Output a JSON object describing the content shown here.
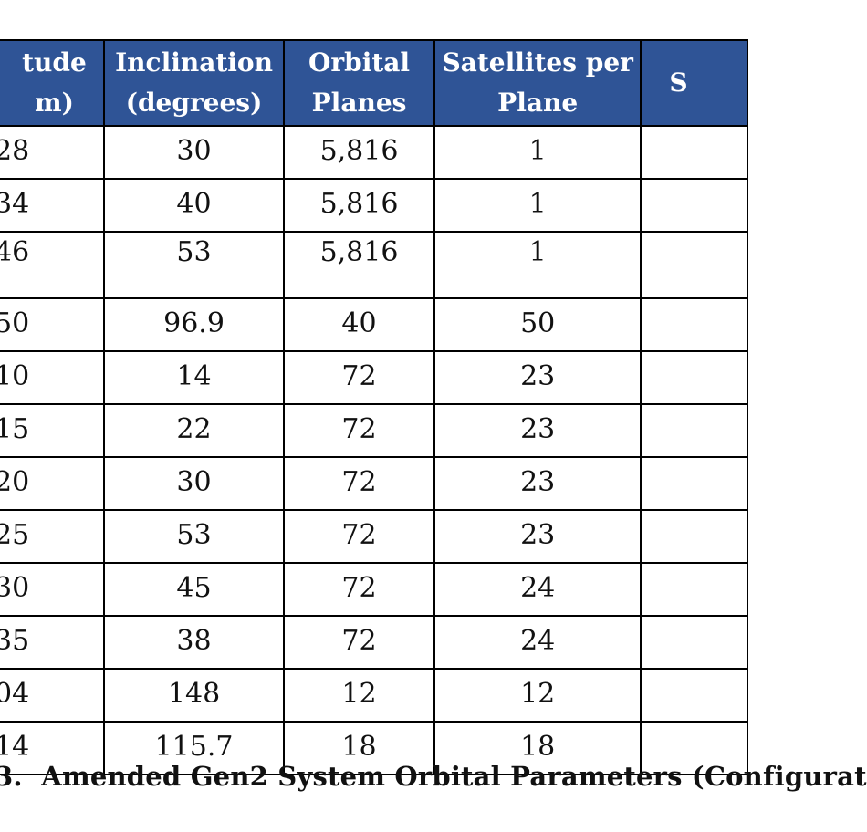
{
  "table": {
    "header_bg": "#2f5496",
    "header_text_color": "#ffffff",
    "columns": [
      {
        "line1": "tude",
        "line2": "m)"
      },
      {
        "line1": "Inclination",
        "line2": "(degrees)"
      },
      {
        "line1": "Orbital",
        "line2": "Planes"
      },
      {
        "line1": "Satellites per",
        "line2": "Plane"
      },
      {
        "line1": "",
        "line2": "S"
      }
    ],
    "rows": [
      [
        "28",
        "30",
        "5,816",
        "1",
        ""
      ],
      [
        "34",
        "40",
        "5,816",
        "1",
        ""
      ],
      [
        "46",
        "53",
        "5,816",
        "1",
        ""
      ],
      [
        "50",
        "96.9",
        "40",
        "50",
        ""
      ],
      [
        "10",
        "14",
        "72",
        "23",
        ""
      ],
      [
        "15",
        "22",
        "72",
        "23",
        ""
      ],
      [
        "20",
        "30",
        "72",
        "23",
        ""
      ],
      [
        "25",
        "53",
        "72",
        "23",
        ""
      ],
      [
        "30",
        "45",
        "72",
        "24",
        ""
      ],
      [
        "35",
        "38",
        "72",
        "24",
        ""
      ],
      [
        "04",
        "148",
        "12",
        "12",
        ""
      ],
      [
        "14",
        "115.7",
        "18",
        "18",
        ""
      ]
    ]
  },
  "caption": {
    "number": "3.",
    "text": "Amended Gen2 System Orbital Parameters (Configurat"
  }
}
